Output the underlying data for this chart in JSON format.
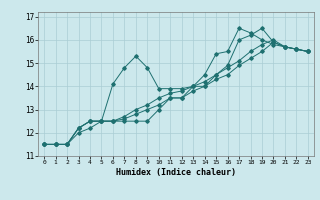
{
  "xlabel": "Humidex (Indice chaleur)",
  "bg_color": "#cce8ec",
  "grid_color": "#aacdd4",
  "line_color": "#1e7070",
  "xlim": [
    -0.5,
    23.5
  ],
  "ylim": [
    11,
    17.2
  ],
  "yticks": [
    11,
    12,
    13,
    14,
    15,
    16,
    17
  ],
  "xticks": [
    0,
    1,
    2,
    3,
    4,
    5,
    6,
    7,
    8,
    9,
    10,
    11,
    12,
    13,
    14,
    15,
    16,
    17,
    18,
    19,
    20,
    21,
    22,
    23
  ],
  "series": [
    [
      11.5,
      11.5,
      11.5,
      12.2,
      12.5,
      12.5,
      14.1,
      14.8,
      15.3,
      14.8,
      13.9,
      13.9,
      13.9,
      14.0,
      14.5,
      15.4,
      15.5,
      16.5,
      16.3,
      16.0,
      15.8,
      15.7,
      15.6,
      15.5
    ],
    [
      11.5,
      11.5,
      11.5,
      12.2,
      12.5,
      12.5,
      12.5,
      12.5,
      12.5,
      12.5,
      13.0,
      13.5,
      13.5,
      14.0,
      14.0,
      14.5,
      14.9,
      16.0,
      16.2,
      16.5,
      15.9,
      15.7,
      15.6,
      15.5
    ],
    [
      11.5,
      11.5,
      11.5,
      12.2,
      12.5,
      12.5,
      12.5,
      12.6,
      12.8,
      13.0,
      13.2,
      13.5,
      13.5,
      13.8,
      14.0,
      14.3,
      14.5,
      14.9,
      15.2,
      15.5,
      15.9,
      15.7,
      15.6,
      15.5
    ],
    [
      11.5,
      11.5,
      11.5,
      12.0,
      12.2,
      12.5,
      12.5,
      12.7,
      13.0,
      13.2,
      13.5,
      13.7,
      13.8,
      14.0,
      14.2,
      14.5,
      14.8,
      15.1,
      15.5,
      15.8,
      16.0,
      15.7,
      15.6,
      15.5
    ]
  ]
}
